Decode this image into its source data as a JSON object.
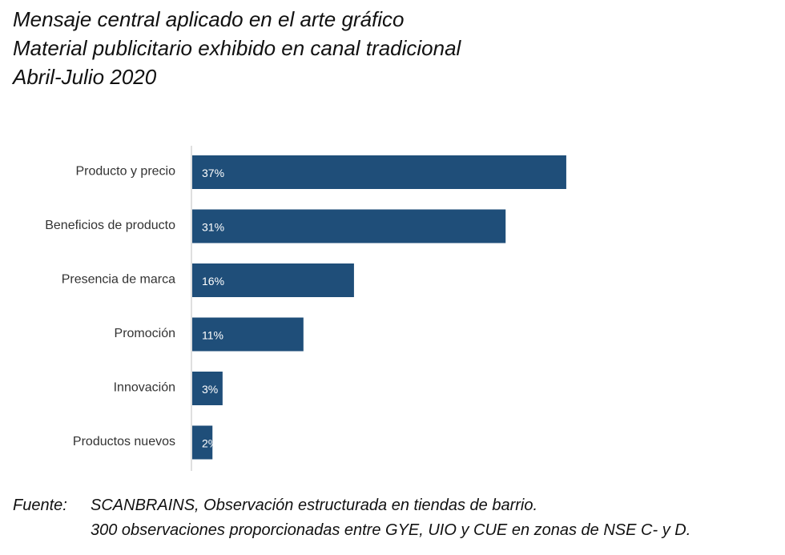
{
  "title": {
    "line1": "Mensaje central aplicado en el arte gráfico",
    "line2": "Material publicitario exhibido en canal tradicional",
    "line3": "Abril-Julio 2020"
  },
  "chart_data": {
    "type": "bar",
    "orientation": "horizontal",
    "categories": [
      "Producto y precio",
      "Beneficios de producto",
      "Presencia de marca",
      "Promoción",
      "Innovación",
      "Productos nuevos"
    ],
    "values": [
      37,
      31,
      16,
      11,
      3,
      2
    ],
    "value_labels": [
      "37%",
      "31%",
      "16%",
      "11%",
      "3%",
      "2%"
    ],
    "unit": "%",
    "bar_color": "#1f4e79",
    "axis_color": "#bfbfbf",
    "grid": false,
    "legend": "none",
    "xlim": [
      0,
      40
    ]
  },
  "source": {
    "label": "Fuente:",
    "line1": "SCANBRAINS, Observación estructurada en tiendas de barrio.",
    "line2": "300 observaciones proporcionadas entre GYE, UIO y CUE en zonas de NSE C- y D."
  }
}
